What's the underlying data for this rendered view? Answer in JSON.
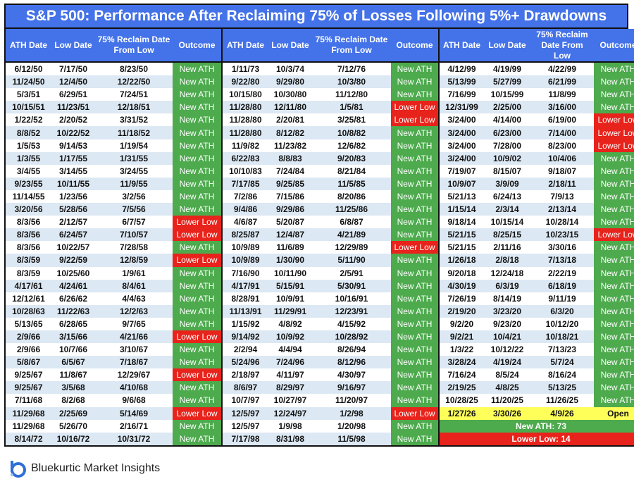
{
  "title": "S&P 500: Performance After Reclaiming 75% of Losses Following 5%+ Drawdowns",
  "headers": {
    "ath": "ATH Date",
    "low": "Low Date",
    "reclaim_a": "75% Reclaim Date From Low",
    "reclaim_b": "75% Reclaim Date From Low",
    "outcome": "Outcome"
  },
  "rows": [
    [
      [
        "6/12/50",
        "7/17/50",
        "8/23/50",
        "New ATH"
      ],
      [
        "1/11/73",
        "10/3/74",
        "7/12/76",
        "New ATH"
      ],
      [
        "4/12/99",
        "4/19/99",
        "4/22/99",
        "New ATH"
      ]
    ],
    [
      [
        "11/24/50",
        "12/4/50",
        "12/22/50",
        "New ATH"
      ],
      [
        "9/22/80",
        "9/29/80",
        "10/3/80",
        "New ATH"
      ],
      [
        "5/13/99",
        "5/27/99",
        "6/21/99",
        "New ATH"
      ]
    ],
    [
      [
        "5/3/51",
        "6/29/51",
        "7/24/51",
        "New ATH"
      ],
      [
        "10/15/80",
        "10/30/80",
        "11/12/80",
        "New ATH"
      ],
      [
        "7/16/99",
        "10/15/99",
        "11/8/99",
        "New ATH"
      ]
    ],
    [
      [
        "10/15/51",
        "11/23/51",
        "12/18/51",
        "New ATH"
      ],
      [
        "11/28/80",
        "12/11/80",
        "1/5/81",
        "Lower Low"
      ],
      [
        "12/31/99",
        "2/25/00",
        "3/16/00",
        "New ATH"
      ]
    ],
    [
      [
        "1/22/52",
        "2/20/52",
        "3/31/52",
        "New ATH"
      ],
      [
        "11/28/80",
        "2/20/81",
        "3/25/81",
        "Lower Low"
      ],
      [
        "3/24/00",
        "4/14/00",
        "6/19/00",
        "Lower Low"
      ]
    ],
    [
      [
        "8/8/52",
        "10/22/52",
        "11/18/52",
        "New ATH"
      ],
      [
        "11/28/80",
        "8/12/82",
        "10/8/82",
        "New ATH"
      ],
      [
        "3/24/00",
        "6/23/00",
        "7/14/00",
        "Lower Low"
      ]
    ],
    [
      [
        "1/5/53",
        "9/14/53",
        "1/19/54",
        "New ATH"
      ],
      [
        "11/9/82",
        "11/23/82",
        "12/6/82",
        "New ATH"
      ],
      [
        "3/24/00",
        "7/28/00",
        "8/23/00",
        "Lower Low"
      ]
    ],
    [
      [
        "1/3/55",
        "1/17/55",
        "1/31/55",
        "New ATH"
      ],
      [
        "6/22/83",
        "8/8/83",
        "9/20/83",
        "New ATH"
      ],
      [
        "3/24/00",
        "10/9/02",
        "10/4/06",
        "New ATH"
      ]
    ],
    [
      [
        "3/4/55",
        "3/14/55",
        "3/24/55",
        "New ATH"
      ],
      [
        "10/10/83",
        "7/24/84",
        "8/21/84",
        "New ATH"
      ],
      [
        "7/19/07",
        "8/15/07",
        "9/18/07",
        "New ATH"
      ]
    ],
    [
      [
        "9/23/55",
        "10/11/55",
        "11/9/55",
        "New ATH"
      ],
      [
        "7/17/85",
        "9/25/85",
        "11/5/85",
        "New ATH"
      ],
      [
        "10/9/07",
        "3/9/09",
        "2/18/11",
        "New ATH"
      ]
    ],
    [
      [
        "11/14/55",
        "1/23/56",
        "3/2/56",
        "New ATH"
      ],
      [
        "7/2/86",
        "7/15/86",
        "8/20/86",
        "New ATH"
      ],
      [
        "5/21/13",
        "6/24/13",
        "7/9/13",
        "New ATH"
      ]
    ],
    [
      [
        "3/20/56",
        "5/28/56",
        "7/5/56",
        "New ATH"
      ],
      [
        "9/4/86",
        "9/29/86",
        "11/25/86",
        "New ATH"
      ],
      [
        "1/15/14",
        "2/3/14",
        "2/13/14",
        "New ATH"
      ]
    ],
    [
      [
        "8/3/56",
        "2/12/57",
        "6/7/57",
        "Lower Low"
      ],
      [
        "4/6/87",
        "5/20/87",
        "6/8/87",
        "New ATH"
      ],
      [
        "9/18/14",
        "10/15/14",
        "10/28/14",
        "New ATH"
      ]
    ],
    [
      [
        "8/3/56",
        "6/24/57",
        "7/10/57",
        "Lower Low"
      ],
      [
        "8/25/87",
        "12/4/87",
        "4/21/89",
        "New ATH"
      ],
      [
        "5/21/15",
        "8/25/15",
        "10/23/15",
        "Lower Low"
      ]
    ],
    [
      [
        "8/3/56",
        "10/22/57",
        "7/28/58",
        "New ATH"
      ],
      [
        "10/9/89",
        "11/6/89",
        "12/29/89",
        "Lower Low"
      ],
      [
        "5/21/15",
        "2/11/16",
        "3/30/16",
        "New ATH"
      ]
    ],
    [
      [
        "8/3/59",
        "9/22/59",
        "12/8/59",
        "Lower Low"
      ],
      [
        "10/9/89",
        "1/30/90",
        "5/11/90",
        "New ATH"
      ],
      [
        "1/26/18",
        "2/8/18",
        "7/13/18",
        "New ATH"
      ]
    ],
    [
      [
        "8/3/59",
        "10/25/60",
        "1/9/61",
        "New ATH"
      ],
      [
        "7/16/90",
        "10/11/90",
        "2/5/91",
        "New ATH"
      ],
      [
        "9/20/18",
        "12/24/18",
        "2/22/19",
        "New ATH"
      ]
    ],
    [
      [
        "4/17/61",
        "4/24/61",
        "8/4/61",
        "New ATH"
      ],
      [
        "4/17/91",
        "5/15/91",
        "5/30/91",
        "New ATH"
      ],
      [
        "4/30/19",
        "6/3/19",
        "6/18/19",
        "New ATH"
      ]
    ],
    [
      [
        "12/12/61",
        "6/26/62",
        "4/4/63",
        "New ATH"
      ],
      [
        "8/28/91",
        "10/9/91",
        "10/16/91",
        "New ATH"
      ],
      [
        "7/26/19",
        "8/14/19",
        "9/11/19",
        "New ATH"
      ]
    ],
    [
      [
        "10/28/63",
        "11/22/63",
        "12/2/63",
        "New ATH"
      ],
      [
        "11/13/91",
        "11/29/91",
        "12/23/91",
        "New ATH"
      ],
      [
        "2/19/20",
        "3/23/20",
        "6/3/20",
        "New ATH"
      ]
    ],
    [
      [
        "5/13/65",
        "6/28/65",
        "9/7/65",
        "New ATH"
      ],
      [
        "1/15/92",
        "4/8/92",
        "4/15/92",
        "New ATH"
      ],
      [
        "9/2/20",
        "9/23/20",
        "10/12/20",
        "New ATH"
      ]
    ],
    [
      [
        "2/9/66",
        "3/15/66",
        "4/21/66",
        "Lower Low"
      ],
      [
        "9/14/92",
        "10/9/92",
        "10/28/92",
        "New ATH"
      ],
      [
        "9/2/21",
        "10/4/21",
        "10/18/21",
        "New ATH"
      ]
    ],
    [
      [
        "2/9/66",
        "10/7/66",
        "3/10/67",
        "New ATH"
      ],
      [
        "2/2/94",
        "4/4/94",
        "8/26/94",
        "New ATH"
      ],
      [
        "1/3/22",
        "10/12/22",
        "7/13/23",
        "New ATH"
      ]
    ],
    [
      [
        "5/8/67",
        "6/5/67",
        "7/18/67",
        "New ATH"
      ],
      [
        "5/24/96",
        "7/24/96",
        "8/12/96",
        "New ATH"
      ],
      [
        "3/28/24",
        "4/19/24",
        "5/7/24",
        "New ATH"
      ]
    ],
    [
      [
        "9/25/67",
        "11/8/67",
        "12/29/67",
        "Lower Low"
      ],
      [
        "2/18/97",
        "4/11/97",
        "4/30/97",
        "New ATH"
      ],
      [
        "7/16/24",
        "8/5/24",
        "8/16/24",
        "New ATH"
      ]
    ],
    [
      [
        "9/25/67",
        "3/5/68",
        "4/10/68",
        "New ATH"
      ],
      [
        "8/6/97",
        "8/29/97",
        "9/16/97",
        "New ATH"
      ],
      [
        "2/19/25",
        "4/8/25",
        "5/13/25",
        "New ATH"
      ]
    ],
    [
      [
        "7/11/68",
        "8/2/68",
        "9/6/68",
        "New ATH"
      ],
      [
        "10/7/97",
        "10/27/97",
        "11/20/97",
        "New ATH"
      ],
      [
        "10/28/25",
        "11/20/25",
        "11/26/25",
        "New ATH"
      ]
    ],
    [
      [
        "11/29/68",
        "2/25/69",
        "5/14/69",
        "Lower Low"
      ],
      [
        "12/5/97",
        "12/24/97",
        "1/2/98",
        "Lower Low"
      ],
      [
        "1/27/26",
        "3/30/26",
        "4/9/26",
        "Open"
      ]
    ],
    [
      [
        "11/29/68",
        "5/26/70",
        "2/16/71",
        "New ATH"
      ],
      [
        "12/5/97",
        "1/9/98",
        "1/20/98",
        "New ATH"
      ],
      null
    ],
    [
      [
        "8/14/72",
        "10/16/72",
        "10/31/72",
        "New ATH"
      ],
      [
        "7/17/98",
        "8/31/98",
        "11/5/98",
        "New ATH"
      ],
      null
    ]
  ],
  "summary": {
    "new_ath": "New ATH: 73",
    "lower_low": "Lower Low: 14"
  },
  "footer": {
    "brand": "Bluekurtic Market Insights"
  },
  "colors": {
    "header": "#4472e8",
    "green": "#4daa4d",
    "red": "#e8231b",
    "yellow": "#ffff5a",
    "stripe": "#dce8f3"
  }
}
